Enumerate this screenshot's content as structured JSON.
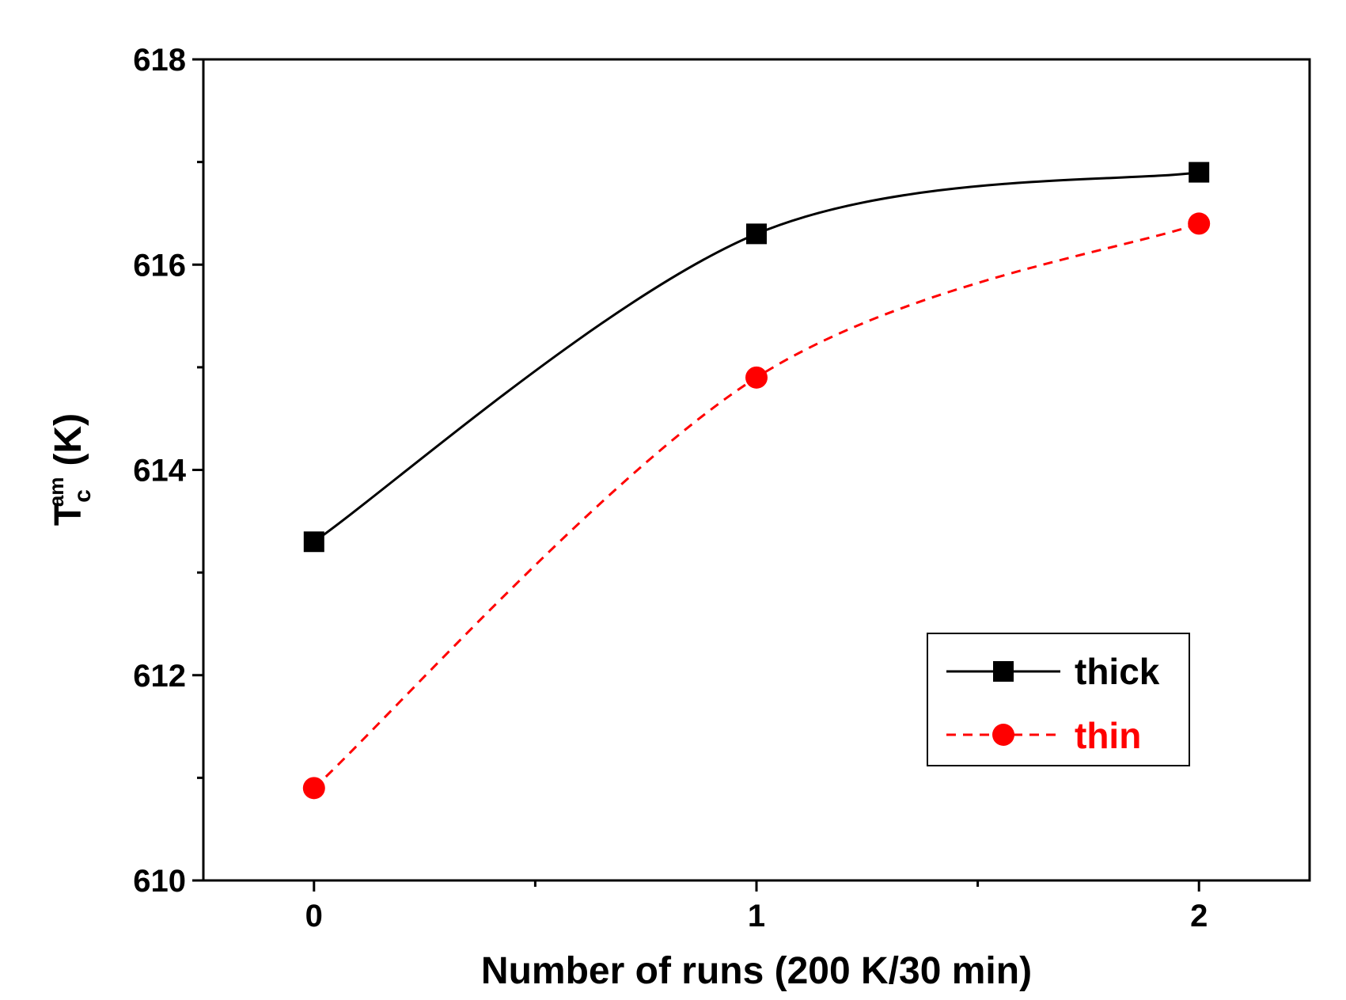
{
  "chart_data": {
    "type": "line",
    "title": "",
    "xlabel": "Number of runs (200 K/30 min)",
    "ylabel": {
      "main": "T",
      "sub": "c",
      "sup": "am",
      "unit": "(K)"
    },
    "xlim": [
      -0.25,
      2.25
    ],
    "ylim": [
      610,
      618
    ],
    "x_ticks": [
      0,
      1,
      2
    ],
    "x_tick_labels": [
      "0",
      "1",
      "2"
    ],
    "x_minor_ticks": [
      0.5,
      1.5
    ],
    "y_ticks": [
      610,
      612,
      614,
      616,
      618
    ],
    "y_tick_labels": [
      "610",
      "612",
      "614",
      "616",
      "618"
    ],
    "y_minor_ticks": [
      611,
      613,
      615,
      617
    ],
    "grid": false,
    "legend_position": "lower-right",
    "series": [
      {
        "name": "thick",
        "x": [
          0,
          1,
          2
        ],
        "values": [
          613.3,
          616.3,
          616.9
        ],
        "color": "#000000",
        "line_style": "solid",
        "marker": "square"
      },
      {
        "name": "thin",
        "x": [
          0,
          1,
          2
        ],
        "values": [
          610.9,
          614.9,
          616.4
        ],
        "color": "#ff0000",
        "line_style": "dashed",
        "marker": "circle"
      }
    ]
  }
}
